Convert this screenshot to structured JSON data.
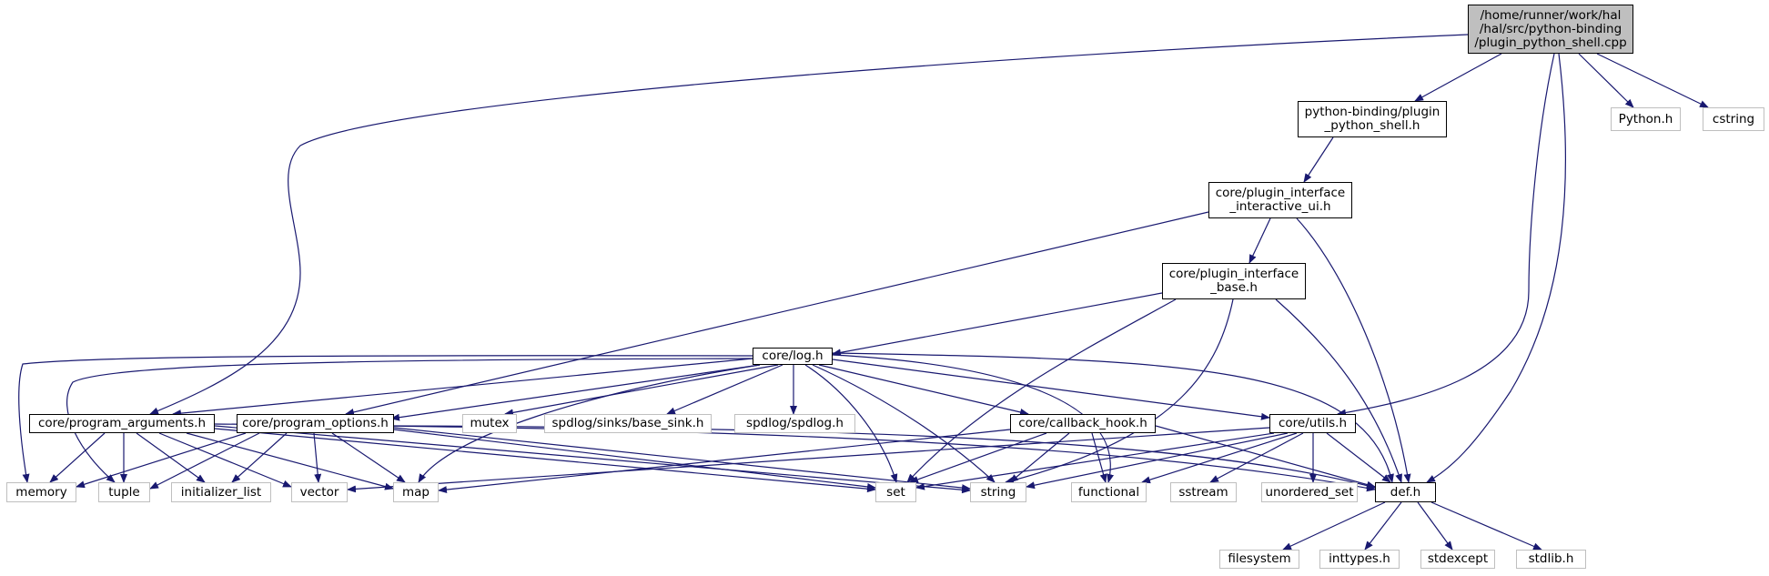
{
  "graph": {
    "edge_color": "#191970",
    "root_fill": "#bfbfbf",
    "nodes": {
      "root": [
        "/home/runner/work/hal",
        "/hal/src/python-binding",
        "/plugin_python_shell.cpp"
      ],
      "plugin_python_shell_h": [
        "python-binding/plugin",
        "_python_shell.h"
      ],
      "plugin_interface_interactive_ui": [
        "core/plugin_interface",
        "_interactive_ui.h"
      ],
      "plugin_interface_base": [
        "core/plugin_interface",
        "_base.h"
      ],
      "log_h": [
        "core/log.h"
      ],
      "program_arguments_h": [
        "core/program_arguments.h"
      ],
      "program_options_h": [
        "core/program_options.h"
      ],
      "callback_hook_h": [
        "core/callback_hook.h"
      ],
      "utils_h": [
        "core/utils.h"
      ],
      "def_h": [
        "def.h"
      ],
      "python_h": [
        "Python.h"
      ],
      "cstring": [
        "cstring"
      ],
      "mutex": [
        "mutex"
      ],
      "base_sink_h": [
        "spdlog/sinks/base_sink.h"
      ],
      "spdlog_h": [
        "spdlog/spdlog.h"
      ],
      "memory": [
        "memory"
      ],
      "tuple": [
        "tuple"
      ],
      "initializer_list": [
        "initializer_list"
      ],
      "vector": [
        "vector"
      ],
      "map": [
        "map"
      ],
      "set": [
        "set"
      ],
      "string": [
        "string"
      ],
      "functional": [
        "functional"
      ],
      "sstream": [
        "sstream"
      ],
      "unordered_set": [
        "unordered_set"
      ],
      "filesystem": [
        "filesystem"
      ],
      "inttypes_h": [
        "inttypes.h"
      ],
      "stdexcept": [
        "stdexcept"
      ],
      "stdlib_h": [
        "stdlib.h"
      ]
    }
  }
}
